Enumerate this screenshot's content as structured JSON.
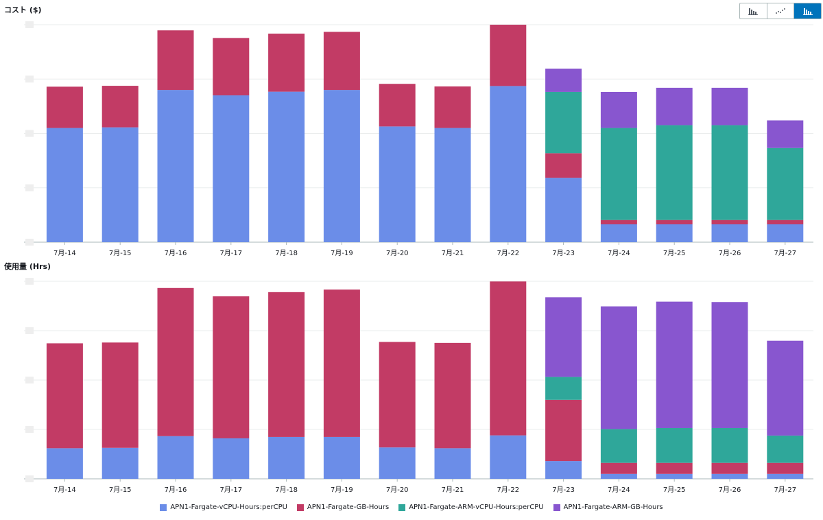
{
  "toggle": {
    "icons": [
      "bar-chart-icon",
      "line-chart-icon",
      "stacked-bar-chart-icon"
    ],
    "active": 2
  },
  "colors": {
    "vcpu": "#6b8de8",
    "gb": "#c23b65",
    "arm_vcpu": "#2fa79a",
    "arm_gb": "#8856cf"
  },
  "legend": [
    {
      "label": "APN1-Fargate-vCPU-Hours:perCPU",
      "key": "vcpu"
    },
    {
      "label": "APN1-Fargate-GB-Hours",
      "key": "gb"
    },
    {
      "label": "APN1-Fargate-ARM-vCPU-Hours:perCPU",
      "key": "arm_vcpu"
    },
    {
      "label": "APN1-Fargate-ARM-GB-Hours",
      "key": "arm_gb"
    }
  ],
  "chart_data": [
    {
      "type": "bar",
      "stacked": true,
      "title": "コスト ($)",
      "ylim": [
        0,
        100
      ],
      "grid": true,
      "categories": [
        "7月-14",
        "7月-15",
        "7月-16",
        "7月-17",
        "7月-18",
        "7月-19",
        "7月-20",
        "7月-21",
        "7月-22",
        "7月-23",
        "7月-24",
        "7月-25",
        "7月-26",
        "7月-27"
      ],
      "series": [
        {
          "name": "APN1-Fargate-vCPU-Hours:perCPU",
          "key": "vcpu",
          "values": [
            52.5,
            52.8,
            70.0,
            67.5,
            69.2,
            70.0,
            53.2,
            52.5,
            71.8,
            29.6,
            8.2,
            8.2,
            8.2,
            8.2
          ]
        },
        {
          "name": "APN1-Fargate-GB-Hours",
          "key": "gb",
          "values": [
            19.0,
            19.1,
            27.4,
            26.4,
            26.7,
            26.7,
            19.6,
            19.1,
            28.2,
            11.3,
            2.0,
            2.0,
            2.0,
            2.0
          ]
        },
        {
          "name": "APN1-Fargate-ARM-vCPU-Hours:perCPU",
          "key": "arm_vcpu",
          "values": [
            0,
            0,
            0,
            0,
            0,
            0,
            0,
            0,
            0,
            28.2,
            42.3,
            43.6,
            43.6,
            33.1
          ]
        },
        {
          "name": "APN1-Fargate-ARM-GB-Hours",
          "key": "arm_gb",
          "values": [
            0,
            0,
            0,
            0,
            0,
            0,
            0,
            0,
            0,
            10.7,
            16.6,
            17.2,
            17.2,
            12.7
          ]
        }
      ]
    },
    {
      "type": "bar",
      "stacked": true,
      "title": "使用量 (Hrs)",
      "ylim": [
        0,
        100
      ],
      "grid": true,
      "categories": [
        "7月-14",
        "7月-15",
        "7月-16",
        "7月-17",
        "7月-18",
        "7月-19",
        "7月-20",
        "7月-21",
        "7月-22",
        "7月-23",
        "7月-24",
        "7月-25",
        "7月-26",
        "7月-27"
      ],
      "series": [
        {
          "name": "APN1-Fargate-vCPU-Hours:perCPU",
          "key": "vcpu",
          "values": [
            15.5,
            15.7,
            21.6,
            20.5,
            21.2,
            21.2,
            15.9,
            15.5,
            22.0,
            9.0,
            2.5,
            2.5,
            2.5,
            2.5
          ]
        },
        {
          "name": "APN1-Fargate-GB-Hours",
          "key": "gb",
          "values": [
            53.1,
            53.3,
            75.0,
            71.9,
            73.3,
            74.6,
            53.4,
            53.3,
            77.9,
            31.0,
            5.6,
            5.6,
            5.6,
            5.6
          ]
        },
        {
          "name": "APN1-Fargate-ARM-vCPU-Hours:perCPU",
          "key": "arm_vcpu",
          "values": [
            0,
            0,
            0,
            0,
            0,
            0,
            0,
            0,
            0,
            11.6,
            17.1,
            17.6,
            17.6,
            13.8
          ]
        },
        {
          "name": "APN1-Fargate-ARM-GB-Hours",
          "key": "arm_gb",
          "values": [
            0,
            0,
            0,
            0,
            0,
            0,
            0,
            0,
            0,
            40.3,
            62.1,
            64.0,
            63.8,
            48.0
          ]
        }
      ]
    }
  ]
}
